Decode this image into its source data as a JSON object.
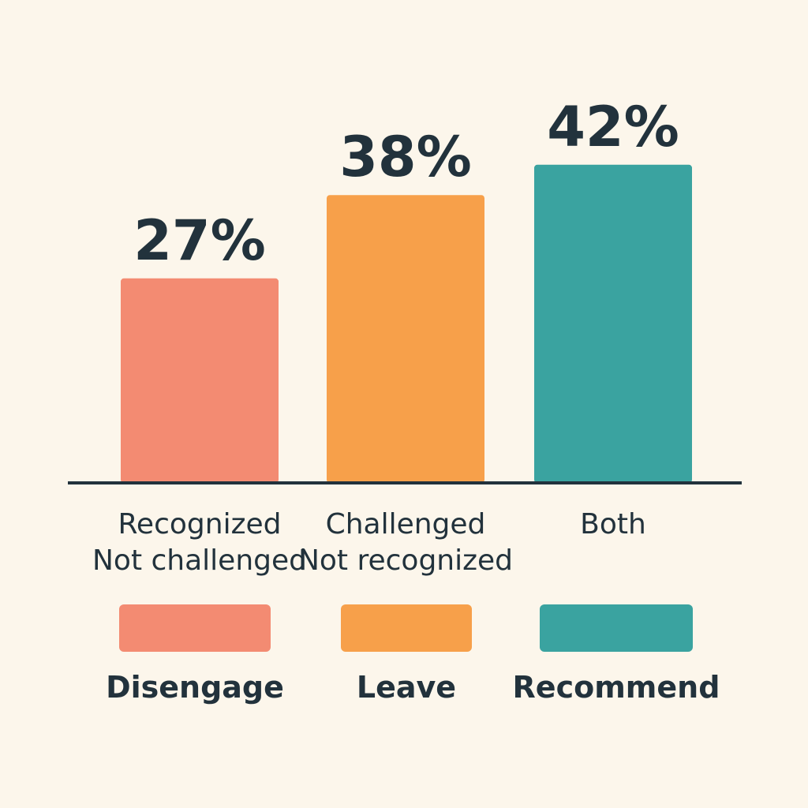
{
  "chart_data": {
    "type": "bar",
    "categories": [
      [
        "Recognized",
        "Not challenged"
      ],
      [
        "Challenged",
        "Not recognized"
      ],
      [
        "Both"
      ]
    ],
    "values": [
      27,
      38,
      42
    ],
    "value_labels": [
      "27%",
      "38%",
      "42%"
    ],
    "colors": [
      "#f38b72",
      "#f7a04a",
      "#3aa3a0"
    ],
    "ylim": [
      0,
      50
    ],
    "grid": false,
    "legend_position": "bottom",
    "legend": [
      {
        "label": "Disengage",
        "color": "#f38b72"
      },
      {
        "label": "Leave",
        "color": "#f7a04a"
      },
      {
        "label": "Recommend",
        "color": "#3aa3a0"
      }
    ]
  }
}
